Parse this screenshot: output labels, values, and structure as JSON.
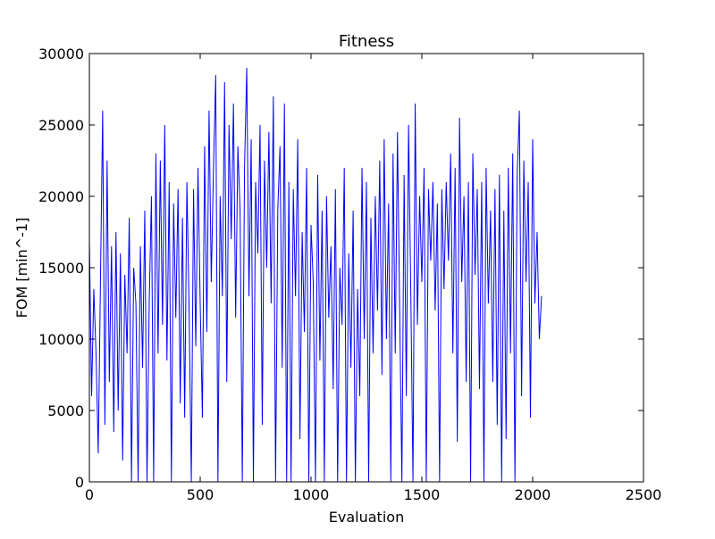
{
  "chart_data": {
    "type": "line",
    "title": "Fitness",
    "x_label": "Evaluation",
    "y_label": "FOM [min^-1]",
    "x": [
      0,
      10,
      20,
      30,
      40,
      50,
      60,
      70,
      80,
      90,
      100,
      110,
      120,
      130,
      140,
      150,
      160,
      170,
      180,
      190,
      200,
      210,
      220,
      230,
      240,
      250,
      260,
      270,
      280,
      290,
      300,
      310,
      320,
      330,
      340,
      350,
      360,
      370,
      380,
      390,
      400,
      410,
      420,
      430,
      440,
      450,
      460,
      470,
      480,
      490,
      500,
      510,
      520,
      530,
      540,
      550,
      560,
      570,
      580,
      590,
      600,
      610,
      620,
      630,
      640,
      650,
      660,
      670,
      680,
      690,
      700,
      710,
      720,
      730,
      740,
      750,
      760,
      770,
      780,
      790,
      800,
      810,
      820,
      830,
      840,
      850,
      860,
      870,
      880,
      890,
      900,
      910,
      920,
      930,
      940,
      950,
      960,
      970,
      980,
      990,
      1000,
      1010,
      1020,
      1030,
      1040,
      1050,
      1060,
      1070,
      1080,
      1090,
      1100,
      1110,
      1120,
      1130,
      1140,
      1150,
      1160,
      1170,
      1180,
      1190,
      1200,
      1210,
      1220,
      1230,
      1240,
      1250,
      1260,
      1270,
      1280,
      1290,
      1300,
      1310,
      1320,
      1330,
      1340,
      1350,
      1360,
      1370,
      1380,
      1390,
      1400,
      1410,
      1420,
      1430,
      1440,
      1450,
      1460,
      1470,
      1480,
      1490,
      1500,
      1510,
      1520,
      1530,
      1540,
      1550,
      1560,
      1570,
      1580,
      1590,
      1600,
      1610,
      1620,
      1630,
      1640,
      1650,
      1660,
      1670,
      1680,
      1690,
      1700,
      1710,
      1720,
      1730,
      1740,
      1750,
      1760,
      1770,
      1780,
      1790,
      1800,
      1810,
      1820,
      1830,
      1840,
      1850,
      1860,
      1870,
      1880,
      1890,
      1900,
      1910,
      1920,
      1930,
      1940,
      1950,
      1960,
      1970,
      1980,
      1990,
      2000,
      2010,
      2020,
      2030,
      2040
    ],
    "series": [
      {
        "name": "Fitness",
        "color": "#0000ff",
        "values": [
          17000,
          6000,
          13500,
          9000,
          2000,
          14000,
          26000,
          4000,
          22500,
          7000,
          16500,
          3500,
          17500,
          5000,
          16000,
          1500,
          14500,
          9000,
          18500,
          0,
          15000,
          12500,
          0,
          16500,
          8000,
          19000,
          0,
          12500,
          20000,
          0,
          23000,
          9000,
          22500,
          11000,
          25000,
          8500,
          21000,
          0,
          19500,
          11500,
          20500,
          5500,
          18500,
          4500,
          21000,
          12000,
          0,
          20500,
          9500,
          22000,
          12500,
          4500,
          23500,
          10500,
          26000,
          14000,
          22000,
          28500,
          0,
          20000,
          13000,
          28000,
          7000,
          25000,
          17000,
          26500,
          11500,
          23500,
          19000,
          0,
          22000,
          29000,
          13000,
          24000,
          0,
          21000,
          16000,
          25000,
          4000,
          22500,
          15000,
          24500,
          12500,
          27000,
          0,
          19000,
          23500,
          8000,
          26500,
          0,
          21000,
          0,
          20500,
          13000,
          24000,
          3000,
          17500,
          10500,
          22000,
          0,
          18000,
          14000,
          0,
          21500,
          8500,
          19000,
          0,
          20000,
          11500,
          16500,
          6500,
          20500,
          0,
          15000,
          11000,
          22000,
          0,
          16000,
          8000,
          19000,
          0,
          13500,
          6000,
          22000,
          10000,
          21000,
          0,
          18500,
          9000,
          20000,
          12000,
          22500,
          7500,
          24000,
          10000,
          19500,
          0,
          23000,
          9000,
          24500,
          12000,
          0,
          21500,
          6000,
          25000,
          13500,
          0,
          26500,
          11000,
          20000,
          14000,
          22000,
          0,
          20500,
          15500,
          21000,
          12000,
          19500,
          0,
          20500,
          13500,
          21000,
          15500,
          23000,
          9000,
          22000,
          2800,
          25500,
          14000,
          20000,
          7000,
          21000,
          0,
          23000,
          14500,
          20500,
          6500,
          21000,
          0,
          22000,
          12500,
          19000,
          7000,
          20500,
          4000,
          21500,
          0,
          19000,
          3000,
          22000,
          9000,
          23000,
          0,
          21500,
          26000,
          6000,
          22500,
          14000,
          21000,
          4500,
          24000,
          12500,
          17500,
          10000,
          13000
        ]
      }
    ],
    "xlim": [
      0,
      2500
    ],
    "xticks": [
      0,
      500,
      1000,
      1500,
      2000,
      2500
    ],
    "ylim": [
      0,
      30000
    ],
    "yticks": [
      0,
      5000,
      10000,
      15000,
      20000,
      25000,
      30000
    ]
  }
}
